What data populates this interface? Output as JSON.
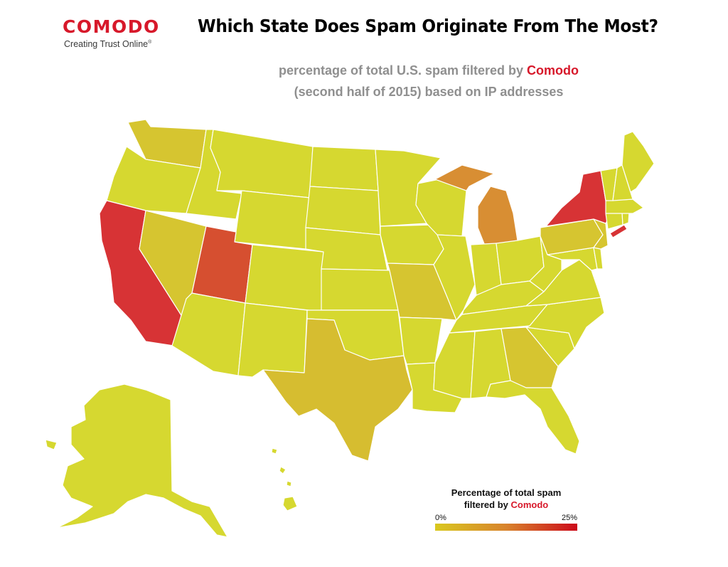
{
  "header": {
    "logo_text": "COMODO",
    "logo_tagline": "Creating Trust Online",
    "logo_tagline_mark": "®",
    "title": "Which State Does Spam Originate From The Most?",
    "subtitle_line1_prefix": "percentage of total U.S. spam filtered by ",
    "subtitle_brand": "Comodo",
    "subtitle_line2": "(second half of 2015) based on IP addresses"
  },
  "legend": {
    "title_line1": "Percentage of total spam",
    "title_line2_prefix": "filtered by ",
    "title_brand": "Comodo",
    "min_label": "0%",
    "max_label": "25%",
    "min_value": 0,
    "max_value": 25,
    "color_low": "#d9c81f",
    "color_mid": "#d8832c",
    "color_high": "#cc0a1a"
  },
  "colors": {
    "brand": "#d7182a",
    "subtitle": "#8f8f8f",
    "state_border": "#ffffff"
  },
  "chart_data": {
    "type": "choropleth",
    "value_unit": "percent of total U.S. spam (estimated from color scale)",
    "states": [
      {
        "code": "CA",
        "value": 22,
        "color": "#d73335"
      },
      {
        "code": "NY",
        "value": 22,
        "color": "#d73335"
      },
      {
        "code": "UT",
        "value": 15,
        "color": "#d64f30"
      },
      {
        "code": "MI",
        "value": 10,
        "color": "#d88e33"
      },
      {
        "code": "TX",
        "value": 5,
        "color": "#d6bd30"
      },
      {
        "code": "WA",
        "value": 4,
        "color": "#d6c530"
      },
      {
        "code": "NV",
        "value": 4,
        "color": "#d6c530"
      },
      {
        "code": "MO",
        "value": 4,
        "color": "#d6c530"
      },
      {
        "code": "GA",
        "value": 4,
        "color": "#d6c530"
      },
      {
        "code": "PA",
        "value": 4,
        "color": "#d6c530"
      },
      {
        "code": "NJ",
        "value": 4,
        "color": "#d6c530"
      },
      {
        "code": "OR",
        "value": 1,
        "color": "#d6d830"
      },
      {
        "code": "ID",
        "value": 1,
        "color": "#d6d830"
      },
      {
        "code": "MT",
        "value": 1,
        "color": "#d6d830"
      },
      {
        "code": "WY",
        "value": 1,
        "color": "#d6d830"
      },
      {
        "code": "AZ",
        "value": 1,
        "color": "#d6d830"
      },
      {
        "code": "NM",
        "value": 1,
        "color": "#d6d830"
      },
      {
        "code": "CO",
        "value": 1,
        "color": "#d6d830"
      },
      {
        "code": "ND",
        "value": 1,
        "color": "#d6d830"
      },
      {
        "code": "SD",
        "value": 1,
        "color": "#d6d830"
      },
      {
        "code": "NE",
        "value": 1,
        "color": "#d6d830"
      },
      {
        "code": "KS",
        "value": 1,
        "color": "#d6d830"
      },
      {
        "code": "OK",
        "value": 1,
        "color": "#d6d830"
      },
      {
        "code": "MN",
        "value": 1,
        "color": "#d6d830"
      },
      {
        "code": "IA",
        "value": 1,
        "color": "#d6d830"
      },
      {
        "code": "AR",
        "value": 1,
        "color": "#d6d830"
      },
      {
        "code": "LA",
        "value": 1,
        "color": "#d6d830"
      },
      {
        "code": "WI",
        "value": 1,
        "color": "#d6d830"
      },
      {
        "code": "IL",
        "value": 1,
        "color": "#d6d830"
      },
      {
        "code": "IN",
        "value": 1,
        "color": "#d6d830"
      },
      {
        "code": "OH",
        "value": 1,
        "color": "#d6d830"
      },
      {
        "code": "KY",
        "value": 1,
        "color": "#d6d830"
      },
      {
        "code": "TN",
        "value": 1,
        "color": "#d6d830"
      },
      {
        "code": "MS",
        "value": 1,
        "color": "#d6d830"
      },
      {
        "code": "AL",
        "value": 1,
        "color": "#d6d830"
      },
      {
        "code": "FL",
        "value": 1,
        "color": "#d6d830"
      },
      {
        "code": "SC",
        "value": 1,
        "color": "#d6d830"
      },
      {
        "code": "NC",
        "value": 1,
        "color": "#d6d830"
      },
      {
        "code": "VA",
        "value": 1,
        "color": "#d6d830"
      },
      {
        "code": "WV",
        "value": 1,
        "color": "#d6d830"
      },
      {
        "code": "MD",
        "value": 1,
        "color": "#d6d830"
      },
      {
        "code": "DE",
        "value": 1,
        "color": "#d6d830"
      },
      {
        "code": "CT",
        "value": 1,
        "color": "#d6d830"
      },
      {
        "code": "RI",
        "value": 1,
        "color": "#d6d830"
      },
      {
        "code": "MA",
        "value": 1,
        "color": "#d6d830"
      },
      {
        "code": "VT",
        "value": 1,
        "color": "#d6d830"
      },
      {
        "code": "NH",
        "value": 1,
        "color": "#d6d830"
      },
      {
        "code": "ME",
        "value": 1,
        "color": "#d6d830"
      },
      {
        "code": "AK",
        "value": 1,
        "color": "#d6d830"
      },
      {
        "code": "HI",
        "value": 1,
        "color": "#d6d830"
      }
    ]
  }
}
